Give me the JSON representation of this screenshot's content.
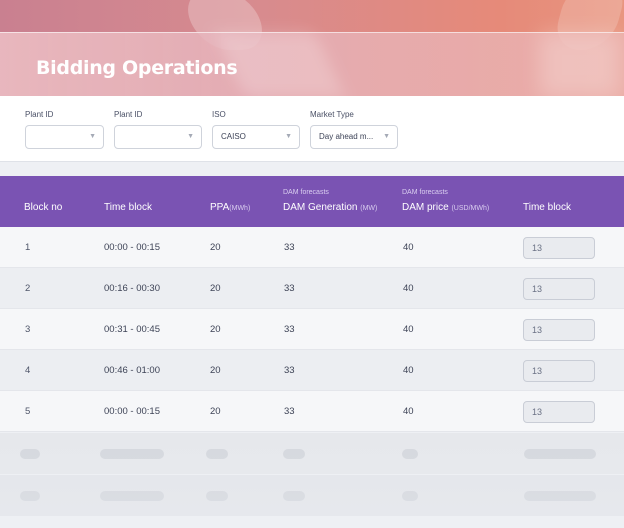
{
  "header": {
    "title": "Bidding Operations"
  },
  "filters": [
    {
      "label": "Plant ID",
      "value": ""
    },
    {
      "label": "Plant ID",
      "value": ""
    },
    {
      "label": "ISO",
      "value": "CAISO"
    },
    {
      "label": "Market Type",
      "value": "Day ahead m..."
    }
  ],
  "table": {
    "columns": {
      "block_no": "Block no",
      "time_block": "Time block",
      "ppa": "PPA",
      "ppa_unit": "(MWh)",
      "dam_gen_super": "DAM forecasts",
      "dam_gen": "DAM Generation",
      "dam_gen_unit": "(MW)",
      "dam_price_super": "DAM forecasts",
      "dam_price": "DAM price",
      "dam_price_unit": "(USD/MWh)",
      "time_block_input": "Time block"
    },
    "rows": [
      {
        "block": "1",
        "time": "00:00 - 00:15",
        "ppa": "20",
        "gen": "33",
        "price": "40",
        "input": "13"
      },
      {
        "block": "2",
        "time": "00:16 - 00:30",
        "ppa": "20",
        "gen": "33",
        "price": "40",
        "input": "13"
      },
      {
        "block": "3",
        "time": "00:31 - 00:45",
        "ppa": "20",
        "gen": "33",
        "price": "40",
        "input": "13"
      },
      {
        "block": "4",
        "time": "00:46 - 01:00",
        "ppa": "20",
        "gen": "33",
        "price": "40",
        "input": "13"
      },
      {
        "block": "5",
        "time": "00:00 - 00:15",
        "ppa": "20",
        "gen": "33",
        "price": "40",
        "input": "13"
      }
    ]
  }
}
